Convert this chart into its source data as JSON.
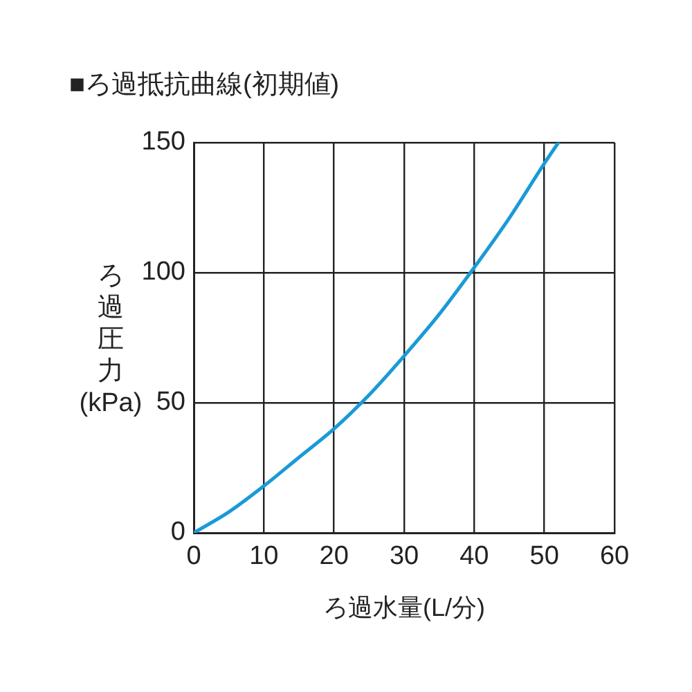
{
  "chart_data": {
    "type": "line",
    "title": "■ろ過抵抗曲線(初期値)",
    "xlabel": "ろ過水量(L/分)",
    "ylabel": "ろ過圧力(kPa)",
    "x": [
      0,
      5,
      10,
      15,
      20,
      25,
      30,
      35,
      40,
      45,
      50,
      52
    ],
    "series": [
      {
        "color": "#1a9ad6",
        "values": [
          0,
          8,
          18,
          29,
          40,
          53,
          68,
          84,
          102,
          121,
          142,
          150
        ]
      }
    ],
    "xlim": [
      0,
      60
    ],
    "xticks": [
      0,
      10,
      20,
      30,
      40,
      50,
      60
    ],
    "ylim": [
      0,
      150
    ],
    "yticks": [
      0,
      50,
      100,
      150
    ],
    "grid": true,
    "legend": false,
    "marker": "none",
    "line_style": "solid"
  }
}
